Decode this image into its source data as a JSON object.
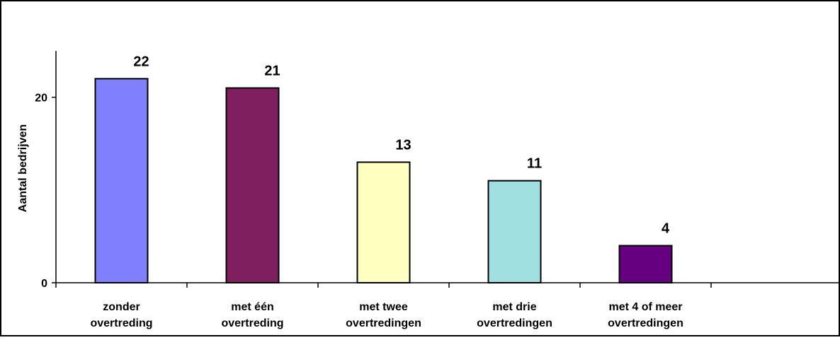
{
  "chart_data": {
    "type": "bar",
    "title": "",
    "xlabel": "",
    "ylabel": "Aantal bedrijven",
    "ylim": [
      0,
      25
    ],
    "yticks": [
      0,
      20
    ],
    "grid": false,
    "legend": "none",
    "categories": [
      [
        "zonder",
        "overtreding"
      ],
      [
        "met één",
        "overtreding"
      ],
      [
        "met twee",
        "overtredingen"
      ],
      [
        "met drie",
        "overtredingen"
      ],
      [
        "met 4 of meer",
        "overtredingen"
      ]
    ],
    "values": [
      22,
      21,
      13,
      11,
      4
    ],
    "colors": [
      "#8080ff",
      "#7f1f5f",
      "#ffffc0",
      "#a0e0e0",
      "#660080"
    ],
    "empty_slots_after": 1
  }
}
